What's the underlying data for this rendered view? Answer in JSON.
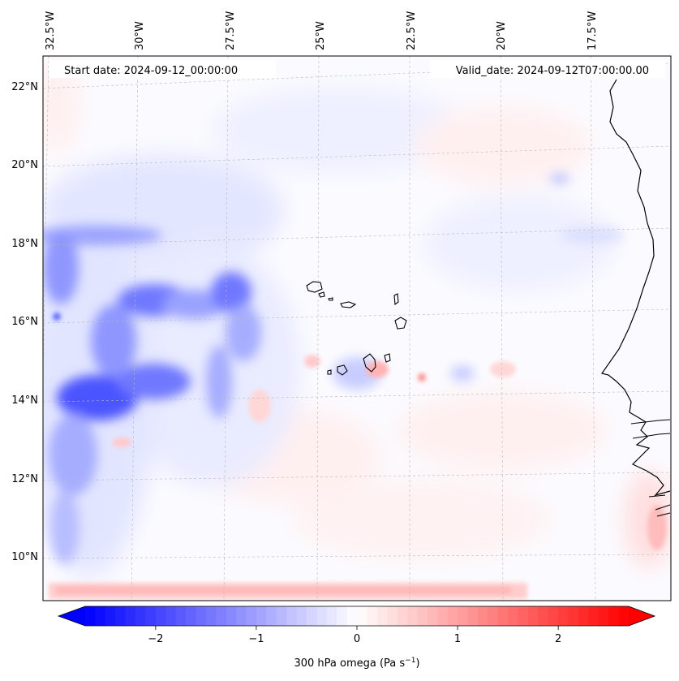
{
  "map": {
    "start_date": "Start date: 2024-09-12_00:00:00",
    "valid_date": "Valid_date: 2024-09-12T07:00:00.00",
    "lon_labels": [
      "32.5°W",
      "30°W",
      "27.5°W",
      "25°W",
      "22.5°W",
      "20°W",
      "17.5°W"
    ],
    "lat_labels": [
      "22°N",
      "20°N",
      "18°N",
      "16°N",
      "14°N",
      "12°N",
      "10°N"
    ]
  },
  "colorbar": {
    "title_main": "300 hPa omega (Pa s",
    "title_sup": "−1",
    "title_end": ")",
    "ticks": [
      "−2",
      "−1",
      "0",
      "1",
      "2"
    ],
    "min": -2.7,
    "max": 2.7,
    "tick_values": [
      -2,
      -1,
      0,
      1,
      2
    ],
    "low_color": "#0000ff",
    "mid_color": "#ffffff",
    "high_color": "#ff0000"
  },
  "chart_data": {
    "type": "heatmap",
    "variable": "300 hPa omega",
    "units": "Pa s−1",
    "x_ticks": [
      "32.5°W",
      "30°W",
      "27.5°W",
      "25°W",
      "22.5°W",
      "20°W",
      "17.5°W"
    ],
    "y_ticks": [
      "22°N",
      "20°N",
      "18°N",
      "16°N",
      "14°N",
      "12°N",
      "10°N"
    ],
    "color_range": [
      -2.7,
      2.7
    ]
  }
}
